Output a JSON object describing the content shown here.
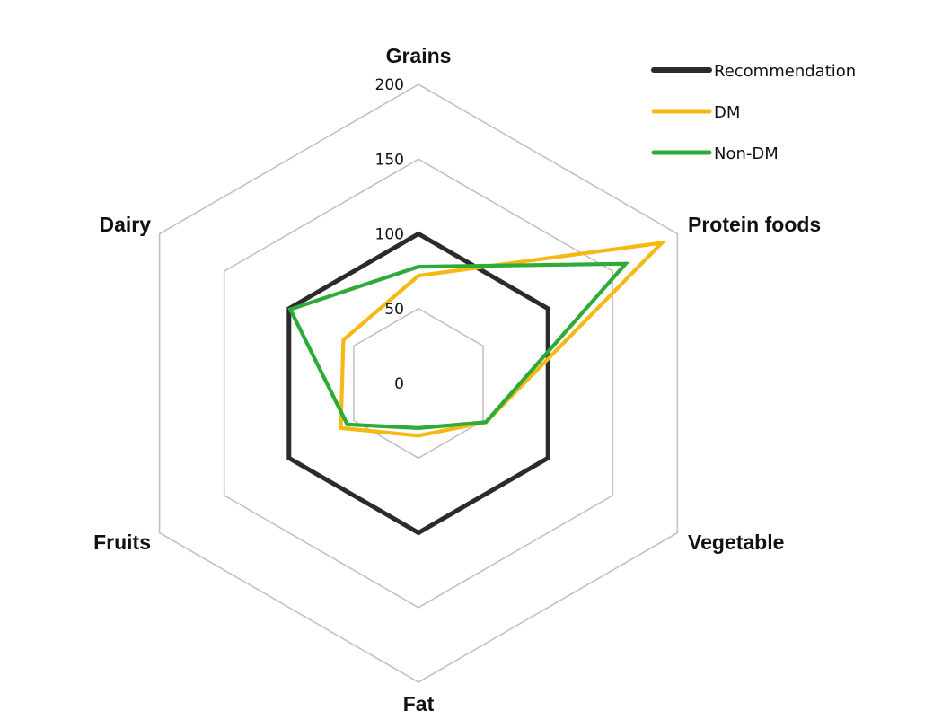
{
  "chart_data": {
    "type": "radar",
    "axes": [
      "Grains",
      "Protein foods",
      "Vegetable",
      "Fat",
      "Fruits",
      "Dairy"
    ],
    "ticks": [
      "0",
      "50",
      "100",
      "150",
      "200"
    ],
    "rlim": [
      0,
      200
    ],
    "grid": true,
    "legend_position": "top-right",
    "series": [
      {
        "name": "Recommendation",
        "color": "#2b2b2b",
        "values": [
          100,
          100,
          100,
          100,
          100,
          100
        ]
      },
      {
        "name": "DM",
        "color": "#f5b914",
        "values": [
          72,
          188,
          52,
          35,
          60,
          58
        ]
      },
      {
        "name": "Non-DM",
        "color": "#2eaa38",
        "values": [
          78,
          160,
          52,
          30,
          55,
          99
        ]
      }
    ]
  }
}
